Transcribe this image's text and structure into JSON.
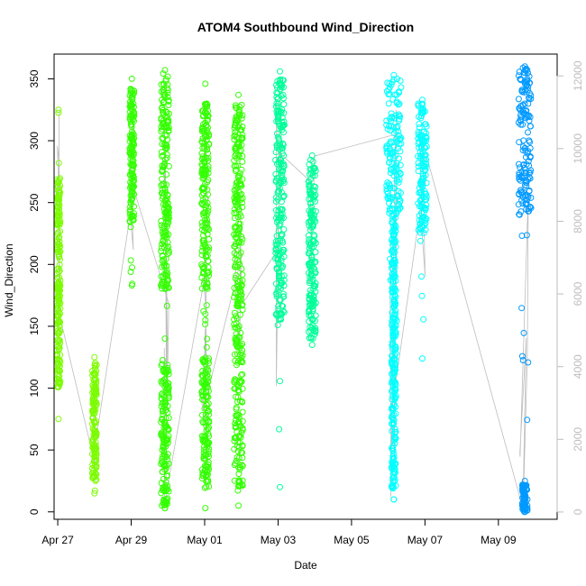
{
  "chart_data": {
    "type": "scatter",
    "title": "ATOM4 Southbound Wind_Direction",
    "xlabel": "Date",
    "ylabel": "Wind_Direction",
    "xlim": [
      -0.1,
      13.6
    ],
    "ylim": [
      -6,
      370
    ],
    "x_ticks": [
      {
        "value": 0,
        "label": "Apr 27"
      },
      {
        "value": 2,
        "label": "Apr 29"
      },
      {
        "value": 4,
        "label": "May 01"
      },
      {
        "value": 6,
        "label": "May 03"
      },
      {
        "value": 8,
        "label": "May 05"
      },
      {
        "value": 10,
        "label": "May 07"
      },
      {
        "value": 12,
        "label": "May 09"
      }
    ],
    "y_ticks": [
      0,
      50,
      100,
      150,
      200,
      250,
      300,
      350
    ],
    "secondary_axis": {
      "ylim": [
        -200,
        12600
      ],
      "ticks": [
        0,
        2000,
        4000,
        6000,
        8000,
        10000,
        12000
      ],
      "color": "#bdbdbd"
    },
    "grid": false,
    "legend": "none",
    "series": [
      {
        "color": "#7cfc00",
        "clusters": [
          {
            "x": 0.02,
            "w": 0.1,
            "lo": 100,
            "hi": 270,
            "min": 75,
            "max": 325
          },
          {
            "x": 1.0,
            "w": 0.12,
            "lo": 25,
            "hi": 122,
            "min": 15,
            "max": 125
          }
        ]
      },
      {
        "color": "#33ff00",
        "clusters": [
          {
            "x": 2.02,
            "w": 0.12,
            "lo": 230,
            "hi": 345,
            "min": 183,
            "max": 350
          },
          {
            "x": 2.92,
            "w": 0.22,
            "lo": 180,
            "hi": 355,
            "min": 3,
            "max": 357
          },
          {
            "x": 2.92,
            "w": 0.22,
            "lo": 5,
            "hi": 120,
            "min": 3,
            "max": 140
          },
          {
            "x": 4.02,
            "w": 0.2,
            "lo": 180,
            "hi": 330,
            "min": 160,
            "max": 346
          },
          {
            "x": 4.02,
            "w": 0.2,
            "lo": 20,
            "hi": 125,
            "min": 3,
            "max": 155
          },
          {
            "x": 4.92,
            "w": 0.24,
            "lo": 20,
            "hi": 330,
            "min": 5,
            "max": 337
          }
        ]
      },
      {
        "color": "#00ff99",
        "clusters": [
          {
            "x": 6.05,
            "w": 0.24,
            "lo": 150,
            "hi": 350,
            "min": 20,
            "max": 356
          },
          {
            "x": 6.93,
            "w": 0.2,
            "lo": 140,
            "hi": 285,
            "min": 135,
            "max": 288
          }
        ]
      },
      {
        "color": "#00ffff",
        "clusters": [
          {
            "x": 9.15,
            "w": 0.4,
            "lo": 240,
            "hi": 350,
            "min": 10,
            "max": 353
          },
          {
            "x": 9.15,
            "w": 0.12,
            "lo": 20,
            "hi": 240,
            "min": 10,
            "max": 240
          },
          {
            "x": 9.93,
            "w": 0.24,
            "lo": 225,
            "hi": 330,
            "min": 124,
            "max": 333
          }
        ]
      },
      {
        "color": "#0099ff",
        "clusters": [
          {
            "x": 12.72,
            "w": 0.34,
            "lo": 240,
            "hi": 359,
            "min": 0,
            "max": 360
          },
          {
            "x": 12.72,
            "w": 0.14,
            "lo": 0,
            "hi": 22,
            "min": 0,
            "max": 25
          }
        ]
      }
    ]
  }
}
